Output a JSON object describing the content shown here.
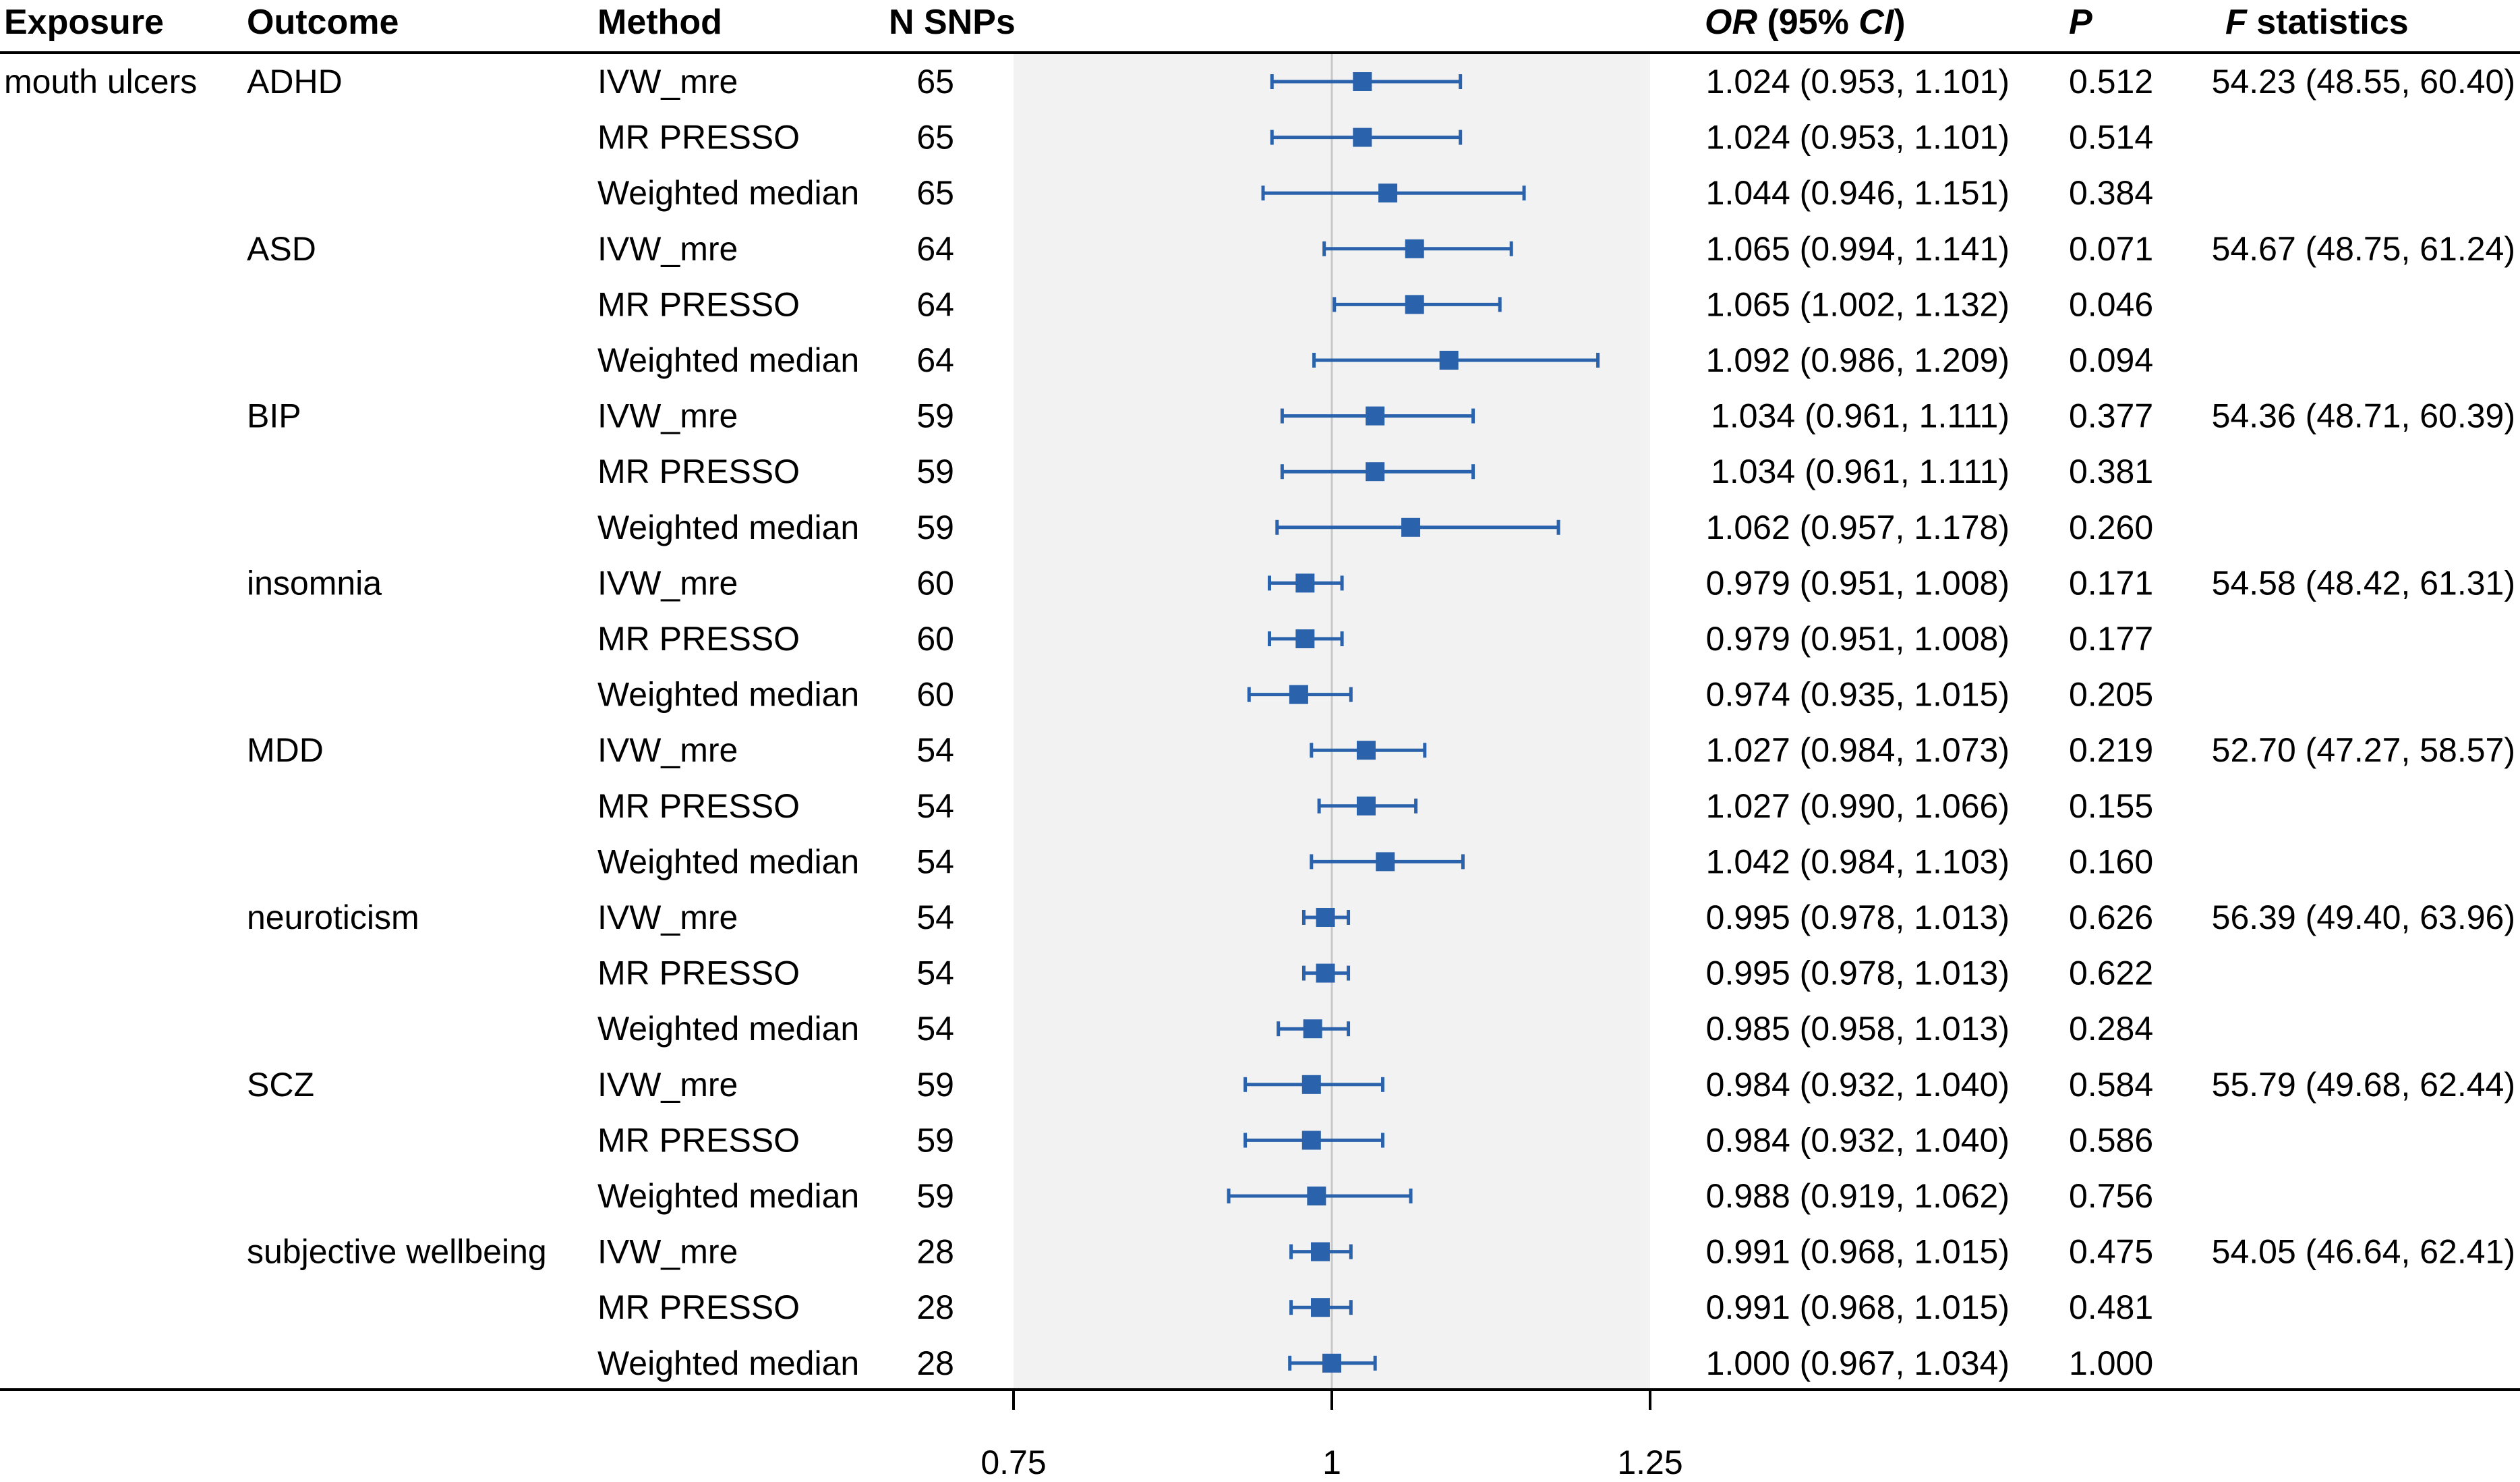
{
  "headers": {
    "exposure": "Exposure",
    "outcome": "Outcome",
    "method": "Method",
    "nsnps": "N SNPs",
    "or_ci_italic": "OR",
    "or_ci_mid": " (95% ",
    "or_ci_ci": "CI",
    "or_ci_end": ")",
    "p": "P",
    "f_italic": "F",
    "f_rest": " statistics"
  },
  "exposure_label": "mouth ulcers",
  "colors": {
    "marker": "#2b62ac",
    "band": "#f2f2f2",
    "refline": "#c8c8c8"
  },
  "chart_data": {
    "type": "forest",
    "xlabel": "",
    "xlim": [
      0.75,
      1.25
    ],
    "xticks": [
      "0.75",
      "1",
      "1.25"
    ],
    "reference_line": 1,
    "rows": [
      {
        "outcome": "ADHD",
        "method": "IVW_mre",
        "n": "65",
        "or": 1.024,
        "lo": 0.953,
        "hi": 1.101,
        "or_text": "1.024 (0.953, 1.101)",
        "p": "0.512",
        "f": "54.23 (48.55, 60.40)"
      },
      {
        "outcome": "",
        "method": "MR PRESSO",
        "n": "65",
        "or": 1.024,
        "lo": 0.953,
        "hi": 1.101,
        "or_text": "1.024 (0.953, 1.101)",
        "p": "0.514",
        "f": ""
      },
      {
        "outcome": "",
        "method": "Weighted median",
        "n": "65",
        "or": 1.044,
        "lo": 0.946,
        "hi": 1.151,
        "or_text": "1.044 (0.946, 1.151)",
        "p": "0.384",
        "f": ""
      },
      {
        "outcome": "ASD",
        "method": "IVW_mre",
        "n": "64",
        "or": 1.065,
        "lo": 0.994,
        "hi": 1.141,
        "or_text": "1.065 (0.994, 1.141)",
        "p": "0.071",
        "f": "54.67 (48.75, 61.24)"
      },
      {
        "outcome": "",
        "method": "MR PRESSO",
        "n": "64",
        "or": 1.065,
        "lo": 1.002,
        "hi": 1.132,
        "or_text": "1.065 (1.002, 1.132)",
        "p": "0.046",
        "f": ""
      },
      {
        "outcome": "",
        "method": "Weighted median",
        "n": "64",
        "or": 1.092,
        "lo": 0.986,
        "hi": 1.209,
        "or_text": "1.092 (0.986, 1.209)",
        "p": "0.094",
        "f": ""
      },
      {
        "outcome": "BIP",
        "method": "IVW_mre",
        "n": "59",
        "or": 1.034,
        "lo": 0.961,
        "hi": 1.111,
        "or_text": "1.034 (0.961, 1.111)",
        "p": "0.377",
        "f": "54.36 (48.71, 60.39)"
      },
      {
        "outcome": "",
        "method": "MR PRESSO",
        "n": "59",
        "or": 1.034,
        "lo": 0.961,
        "hi": 1.111,
        "or_text": "1.034 (0.961, 1.111)",
        "p": "0.381",
        "f": ""
      },
      {
        "outcome": "",
        "method": "Weighted median",
        "n": "59",
        "or": 1.062,
        "lo": 0.957,
        "hi": 1.178,
        "or_text": "1.062 (0.957, 1.178)",
        "p": "0.260",
        "f": ""
      },
      {
        "outcome": "insomnia",
        "method": "IVW_mre",
        "n": "60",
        "or": 0.979,
        "lo": 0.951,
        "hi": 1.008,
        "or_text": "0.979 (0.951, 1.008)",
        "p": "0.171",
        "f": "54.58 (48.42, 61.31)"
      },
      {
        "outcome": "",
        "method": "MR PRESSO",
        "n": "60",
        "or": 0.979,
        "lo": 0.951,
        "hi": 1.008,
        "or_text": "0.979 (0.951, 1.008)",
        "p": "0.177",
        "f": ""
      },
      {
        "outcome": "",
        "method": "Weighted median",
        "n": "60",
        "or": 0.974,
        "lo": 0.935,
        "hi": 1.015,
        "or_text": "0.974 (0.935, 1.015)",
        "p": "0.205",
        "f": ""
      },
      {
        "outcome": "MDD",
        "method": "IVW_mre",
        "n": "54",
        "or": 1.027,
        "lo": 0.984,
        "hi": 1.073,
        "or_text": "1.027 (0.984, 1.073)",
        "p": "0.219",
        "f": "52.70 (47.27, 58.57)"
      },
      {
        "outcome": "",
        "method": "MR PRESSO",
        "n": "54",
        "or": 1.027,
        "lo": 0.99,
        "hi": 1.066,
        "or_text": "1.027 (0.990, 1.066)",
        "p": "0.155",
        "f": ""
      },
      {
        "outcome": "",
        "method": "Weighted median",
        "n": "54",
        "or": 1.042,
        "lo": 0.984,
        "hi": 1.103,
        "or_text": "1.042 (0.984, 1.103)",
        "p": "0.160",
        "f": ""
      },
      {
        "outcome": "neuroticism",
        "method": "IVW_mre",
        "n": "54",
        "or": 0.995,
        "lo": 0.978,
        "hi": 1.013,
        "or_text": "0.995 (0.978, 1.013)",
        "p": "0.626",
        "f": "56.39 (49.40, 63.96)"
      },
      {
        "outcome": "",
        "method": "MR PRESSO",
        "n": "54",
        "or": 0.995,
        "lo": 0.978,
        "hi": 1.013,
        "or_text": "0.995 (0.978, 1.013)",
        "p": "0.622",
        "f": ""
      },
      {
        "outcome": "",
        "method": "Weighted median",
        "n": "54",
        "or": 0.985,
        "lo": 0.958,
        "hi": 1.013,
        "or_text": "0.985 (0.958, 1.013)",
        "p": "0.284",
        "f": ""
      },
      {
        "outcome": "SCZ",
        "method": "IVW_mre",
        "n": "59",
        "or": 0.984,
        "lo": 0.932,
        "hi": 1.04,
        "or_text": "0.984 (0.932, 1.040)",
        "p": "0.584",
        "f": "55.79 (49.68, 62.44)"
      },
      {
        "outcome": "",
        "method": "MR PRESSO",
        "n": "59",
        "or": 0.984,
        "lo": 0.932,
        "hi": 1.04,
        "or_text": "0.984 (0.932, 1.040)",
        "p": "0.586",
        "f": ""
      },
      {
        "outcome": "",
        "method": "Weighted median",
        "n": "59",
        "or": 0.988,
        "lo": 0.919,
        "hi": 1.062,
        "or_text": "0.988 (0.919, 1.062)",
        "p": "0.756",
        "f": ""
      },
      {
        "outcome": "subjective wellbeing",
        "method": "IVW_mre",
        "n": "28",
        "or": 0.991,
        "lo": 0.968,
        "hi": 1.015,
        "or_text": "0.991 (0.968, 1.015)",
        "p": "0.475",
        "f": "54.05 (46.64, 62.41)"
      },
      {
        "outcome": "",
        "method": "MR PRESSO",
        "n": "28",
        "or": 0.991,
        "lo": 0.968,
        "hi": 1.015,
        "or_text": "0.991 (0.968, 1.015)",
        "p": "0.481",
        "f": ""
      },
      {
        "outcome": "",
        "method": "Weighted median",
        "n": "28",
        "or": 1.0,
        "lo": 0.967,
        "hi": 1.034,
        "or_text": "1.000 (0.967, 1.034)",
        "p": "1.000",
        "f": ""
      }
    ]
  }
}
